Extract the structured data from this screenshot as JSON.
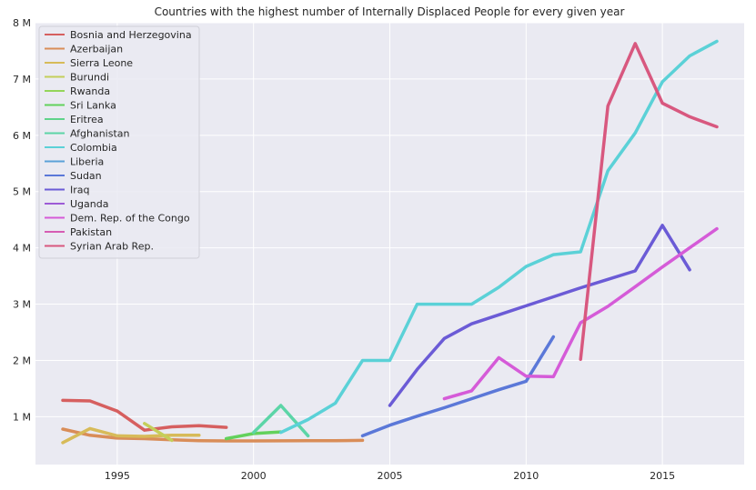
{
  "chart_data": {
    "type": "line",
    "title": "Countries with the highest number of Internally Displaced People for every given year",
    "xlabel": "",
    "ylabel": "",
    "xlim": [
      1992,
      2018
    ],
    "ylim": [
      150000,
      8000000
    ],
    "x_ticks": [
      1995,
      2000,
      2005,
      2010,
      2015
    ],
    "y_ticks": [
      {
        "value": 1000000,
        "label": "1 M"
      },
      {
        "value": 2000000,
        "label": "2 M"
      },
      {
        "value": 3000000,
        "label": "3 M"
      },
      {
        "value": 4000000,
        "label": "4 M"
      },
      {
        "value": 5000000,
        "label": "5 M"
      },
      {
        "value": 6000000,
        "label": "6 M"
      },
      {
        "value": 7000000,
        "label": "7 M"
      },
      {
        "value": 8000000,
        "label": "8 M"
      }
    ],
    "grid": true,
    "background": "#eaeaf2",
    "legend_position": "top-left",
    "series": [
      {
        "name": "Bosnia and Herzegovina",
        "color": "#d65f5f",
        "x": [
          1993,
          1994,
          1995,
          1996,
          1997,
          1998,
          1999
        ],
        "y": [
          1290000,
          1280000,
          1100000,
          760000,
          820000,
          840000,
          810000
        ]
      },
      {
        "name": "Azerbaijan",
        "color": "#d98d58",
        "x": [
          1993,
          1994,
          1995,
          1996,
          1997,
          1998,
          1999,
          2000,
          2001,
          2002,
          2003,
          2004
        ],
        "y": [
          780000,
          670000,
          620000,
          610000,
          590000,
          575000,
          570000,
          570000,
          572000,
          575000,
          575000,
          580000
        ]
      },
      {
        "name": "Sierra Leone",
        "color": "#d7bb59",
        "x": [
          1993,
          1994,
          1995,
          1996,
          1997,
          1998
        ],
        "y": [
          540000,
          790000,
          660000,
          650000,
          670000,
          670000
        ]
      },
      {
        "name": "Burundi",
        "color": "#c4cf5a",
        "x": [
          1996,
          1997
        ],
        "y": [
          880000,
          580000
        ]
      },
      {
        "name": "Rwanda",
        "color": "#94d55a",
        "x": [],
        "y": []
      },
      {
        "name": "Sri Lanka",
        "color": "#63d15c",
        "x": [
          1999,
          2000,
          2001
        ],
        "y": [
          610000,
          700000,
          730000
        ]
      },
      {
        "name": "Eritrea",
        "color": "#5fd38a",
        "x": [],
        "y": []
      },
      {
        "name": "Afghanistan",
        "color": "#5cd5a7",
        "x": [
          2000,
          2001,
          2002
        ],
        "y": [
          720000,
          1200000,
          660000
        ]
      },
      {
        "name": "Colombia",
        "color": "#5bd1d7",
        "x": [
          2001,
          2002,
          2003,
          2004,
          2005,
          2006,
          2007,
          2008,
          2009,
          2010,
          2011,
          2012,
          2013,
          2014,
          2015,
          2016,
          2017
        ],
        "y": [
          720000,
          950000,
          1240000,
          2000000,
          2000000,
          3000000,
          3000000,
          3000000,
          3300000,
          3670000,
          3880000,
          3930000,
          5370000,
          6040000,
          6950000,
          7410000,
          7670000
        ]
      },
      {
        "name": "Liberia",
        "color": "#5ba1d8",
        "x": [],
        "y": []
      },
      {
        "name": "Sudan",
        "color": "#5b78d8",
        "x": [
          2004,
          2005,
          2006,
          2007,
          2008,
          2009,
          2010,
          2011
        ],
        "y": [
          660000,
          850000,
          1010000,
          1160000,
          1320000,
          1480000,
          1630000,
          2420000
        ]
      },
      {
        "name": "Iraq",
        "color": "#6b5bd6",
        "x": [
          2005,
          2006,
          2007,
          2008,
          2009,
          2010,
          2011,
          2012,
          2013,
          2014,
          2015,
          2016
        ],
        "y": [
          1200000,
          1840000,
          2390000,
          2650000,
          2810000,
          2970000,
          3130000,
          3290000,
          3440000,
          3590000,
          4400000,
          3610000
        ]
      },
      {
        "name": "Uganda",
        "color": "#9d5bd6",
        "x": [],
        "y": []
      },
      {
        "name": "Dem. Rep. of the Congo",
        "color": "#d55bd8",
        "x": [
          2007,
          2008,
          2009,
          2010,
          2011,
          2012,
          2013,
          2014,
          2015,
          2016,
          2017
        ],
        "y": [
          1320000,
          1460000,
          2050000,
          1720000,
          1710000,
          2670000,
          2960000,
          3310000,
          3660000,
          4000000,
          4340000
        ]
      },
      {
        "name": "Pakistan",
        "color": "#d65cb3",
        "x": [],
        "y": []
      },
      {
        "name": "Syrian Arab Rep.",
        "color": "#d8587f",
        "x": [
          2012,
          2013,
          2014,
          2015,
          2016,
          2017
        ],
        "y": [
          2020000,
          6520000,
          7630000,
          6570000,
          6330000,
          6150000
        ]
      }
    ]
  }
}
